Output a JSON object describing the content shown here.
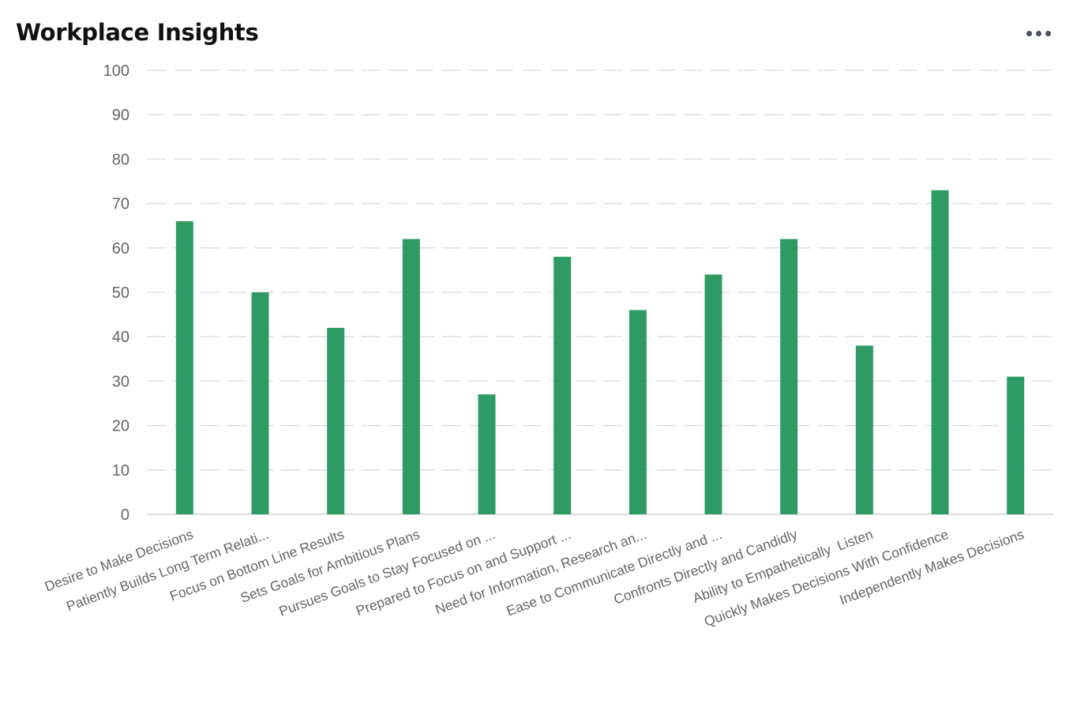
{
  "header": {
    "title": "Workplace Insights",
    "menu_icon": "more-horizontal-icon"
  },
  "colors": {
    "bar": "#2e9b65",
    "grid": "#d9d9e3",
    "axis_text": "#666666",
    "category_text": "#666666"
  },
  "chart_data": {
    "type": "bar",
    "title": "Workplace Insights",
    "categories": [
      "Desire to Make Decisions",
      "Patiently Builds Long Term Relati...",
      "Focus on Bottom Line Results",
      "Sets Goals for Ambitious Plans",
      "Pursues Goals to Stay Focused on ...",
      "Prepared to Focus on and Support ...",
      "Need for Information, Research an...",
      "Ease to Communicate Directly and ...",
      "Confronts Directly and Candidly",
      "Ability to Empathetically  Listen",
      "Quickly Makes Decisions With Confidence",
      "Independently Makes Decisions"
    ],
    "values": [
      66,
      50,
      42,
      62,
      27,
      58,
      46,
      54,
      62,
      38,
      73,
      31
    ],
    "ylim": [
      0,
      100
    ],
    "yticks": [
      0,
      10,
      20,
      30,
      40,
      50,
      60,
      70,
      80,
      90,
      100
    ],
    "grid": "dashed",
    "legend": "none"
  }
}
